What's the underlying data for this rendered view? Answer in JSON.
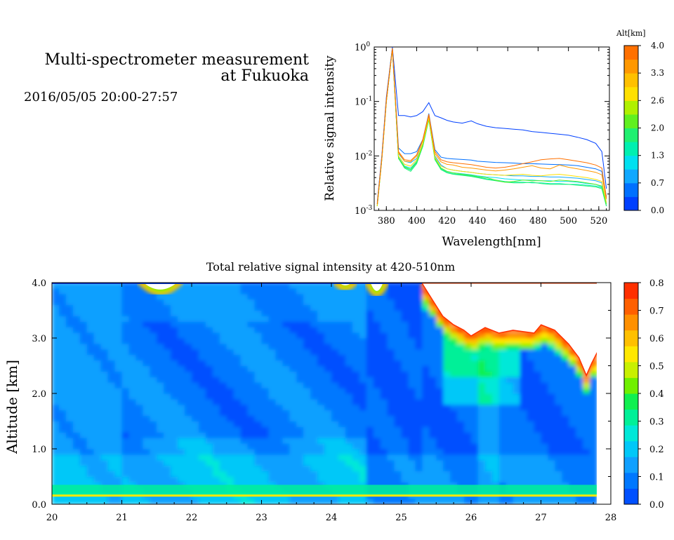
{
  "header": {
    "title_line1": "Multi-spectrometer measurement",
    "title_line2": "at Fukuoka",
    "timestamp": "2016/05/05 20:00-27:57"
  },
  "chart_data": [
    {
      "type": "line",
      "xlabel": "Wavelength[nm]",
      "ylabel": "Relative signal intensity",
      "xlim": [
        372,
        527
      ],
      "ylim": [
        0.001,
        1
      ],
      "yscale": "log",
      "x_ticks": [
        380,
        400,
        420,
        440,
        460,
        480,
        500,
        520
      ],
      "y_ticks": [
        "10^-3",
        "10^-2",
        "10^-1",
        "10^0"
      ],
      "colorbar": {
        "label": "Alt[km]",
        "ticks": [
          "0.0",
          "0.7",
          "1.3",
          "2.0",
          "2.6",
          "3.3",
          "4.0"
        ],
        "colors": [
          "#0040ff",
          "#0070ff",
          "#10a8ff",
          "#00e0f0",
          "#00f0b0",
          "#20f070",
          "#60f020",
          "#b0f000",
          "#ffe000",
          "#ffc000",
          "#ff9800",
          "#ff7000"
        ]
      },
      "x": [
        374,
        377,
        380,
        384,
        388,
        392,
        396,
        400,
        404,
        408,
        412,
        416,
        420,
        424,
        430,
        436,
        440,
        446,
        452,
        458,
        464,
        470,
        476,
        482,
        488,
        494,
        500,
        506,
        512,
        518,
        522,
        525
      ],
      "series": [
        {
          "color": "#0040ff",
          "values": [
            0.0014,
            0.01,
            0.12,
            1.0,
            0.055,
            0.055,
            0.052,
            0.055,
            0.065,
            0.095,
            0.055,
            0.05,
            0.045,
            0.042,
            0.04,
            0.044,
            0.039,
            0.035,
            0.033,
            0.032,
            0.031,
            0.03,
            0.028,
            0.027,
            0.026,
            0.025,
            0.024,
            0.022,
            0.02,
            0.017,
            0.012,
            0.0025
          ]
        },
        {
          "color": "#0070ff",
          "values": [
            0.0013,
            0.009,
            0.11,
            0.95,
            0.014,
            0.011,
            0.011,
            0.012,
            0.02,
            0.06,
            0.013,
            0.0095,
            0.009,
            0.0088,
            0.0086,
            0.0084,
            0.008,
            0.0078,
            0.0076,
            0.0075,
            0.0074,
            0.0072,
            0.0072,
            0.0071,
            0.007,
            0.0069,
            0.0068,
            0.0066,
            0.0062,
            0.0058,
            0.0052,
            0.0018
          ]
        },
        {
          "color": "#10a8ff",
          "values": [
            0.0013,
            0.009,
            0.1,
            0.93,
            0.011,
            0.008,
            0.0075,
            0.009,
            0.017,
            0.05,
            0.01,
            0.0068,
            0.0058,
            0.0055,
            0.0052,
            0.005,
            0.0048,
            0.0046,
            0.0045,
            0.0044,
            0.0043,
            0.0043,
            0.0042,
            0.0042,
            0.0041,
            0.0041,
            0.004,
            0.0039,
            0.0037,
            0.0035,
            0.0032,
            0.0014
          ]
        },
        {
          "color": "#00e0f0",
          "values": [
            0.0012,
            0.0085,
            0.1,
            0.92,
            0.0095,
            0.0065,
            0.006,
            0.008,
            0.016,
            0.048,
            0.009,
            0.006,
            0.0052,
            0.0049,
            0.0047,
            0.0045,
            0.0043,
            0.0041,
            0.004,
            0.0038,
            0.0037,
            0.0036,
            0.0036,
            0.0035,
            0.0035,
            0.0034,
            0.0034,
            0.0033,
            0.0031,
            0.003,
            0.0027,
            0.0013
          ]
        },
        {
          "color": "#00f0b0",
          "values": [
            0.0012,
            0.0085,
            0.1,
            0.92,
            0.009,
            0.0062,
            0.0055,
            0.0075,
            0.015,
            0.047,
            0.0088,
            0.0058,
            0.005,
            0.0047,
            0.0045,
            0.0043,
            0.0041,
            0.0038,
            0.0036,
            0.0034,
            0.0033,
            0.0033,
            0.0032,
            0.0032,
            0.0031,
            0.0031,
            0.003,
            0.003,
            0.0029,
            0.0028,
            0.0026,
            0.0012
          ]
        },
        {
          "color": "#20f070",
          "values": [
            0.0012,
            0.0085,
            0.1,
            0.92,
            0.009,
            0.006,
            0.0052,
            0.0072,
            0.015,
            0.046,
            0.0085,
            0.0056,
            0.0049,
            0.0046,
            0.0044,
            0.0042,
            0.004,
            0.0037,
            0.0035,
            0.0033,
            0.0032,
            0.0032,
            0.0033,
            0.0031,
            0.003,
            0.003,
            0.003,
            0.0029,
            0.0028,
            0.0027,
            0.0025,
            0.0012
          ]
        },
        {
          "color": "#60f020",
          "values": [
            0.0012,
            0.0085,
            0.1,
            0.92,
            0.0092,
            0.0063,
            0.0057,
            0.0078,
            0.016,
            0.048,
            0.009,
            0.006,
            0.0052,
            0.0049,
            0.0046,
            0.0044,
            0.0042,
            0.004,
            0.0036,
            0.0033,
            0.0034,
            0.0036,
            0.0035,
            0.0035,
            0.0034,
            0.0036,
            0.0035,
            0.0034,
            0.0032,
            0.003,
            0.0028,
            0.0013
          ]
        },
        {
          "color": "#ffe000",
          "values": [
            0.0012,
            0.0085,
            0.1,
            0.93,
            0.01,
            0.007,
            0.0065,
            0.0085,
            0.017,
            0.05,
            0.0095,
            0.0065,
            0.0058,
            0.0055,
            0.0052,
            0.005,
            0.0048,
            0.0046,
            0.0045,
            0.0044,
            0.0045,
            0.0046,
            0.0044,
            0.0043,
            0.0045,
            0.0046,
            0.0044,
            0.0042,
            0.004,
            0.0037,
            0.0034,
            0.0014
          ]
        },
        {
          "color": "#ff9800",
          "values": [
            0.0013,
            0.009,
            0.1,
            0.94,
            0.0115,
            0.008,
            0.0078,
            0.01,
            0.019,
            0.055,
            0.011,
            0.0078,
            0.007,
            0.0068,
            0.0062,
            0.006,
            0.0058,
            0.0055,
            0.0053,
            0.0055,
            0.0058,
            0.0062,
            0.0066,
            0.006,
            0.0058,
            0.0068,
            0.0062,
            0.0058,
            0.0054,
            0.005,
            0.0045,
            0.0016
          ]
        },
        {
          "color": "#ff7000",
          "values": [
            0.0013,
            0.009,
            0.11,
            0.95,
            0.012,
            0.0085,
            0.0082,
            0.0105,
            0.02,
            0.058,
            0.012,
            0.0085,
            0.0078,
            0.0075,
            0.0072,
            0.0069,
            0.0066,
            0.0062,
            0.006,
            0.0062,
            0.0066,
            0.0072,
            0.0078,
            0.0085,
            0.0088,
            0.009,
            0.0085,
            0.008,
            0.0075,
            0.0068,
            0.006,
            0.0017
          ]
        }
      ]
    },
    {
      "type": "heatmap",
      "title": "Total relative signal intensity at 420-510nm",
      "ylabel": "Altitude [km]",
      "xlim": [
        20,
        28
      ],
      "ylim": [
        0.0,
        4.0
      ],
      "x_ticks": [
        "20",
        "21",
        "22",
        "23",
        "24",
        "25",
        "26",
        "27",
        "28"
      ],
      "y_ticks": [
        "0.0",
        "1.0",
        "2.0",
        "3.0",
        "4.0"
      ],
      "colorbar": {
        "ticks": [
          "0.0",
          "0.1",
          "0.2",
          "0.3",
          "0.4",
          "0.5",
          "0.6",
          "0.7",
          "0.8"
        ],
        "range": [
          0.0,
          0.8
        ],
        "colors": [
          "#0050ff",
          "#0078ff",
          "#10a0ff",
          "#00c8f8",
          "#00e8d8",
          "#00f098",
          "#10f050",
          "#70f000",
          "#c8f000",
          "#ffe800",
          "#ffc000",
          "#ff9000",
          "#ff6000",
          "#ff3000"
        ]
      },
      "data_extent_x": [
        20,
        27.8
      ],
      "cloud_top_profile": {
        "x": [
          25.3,
          25.45,
          25.6,
          25.75,
          25.9,
          26.0,
          26.2,
          26.4,
          26.6,
          26.9,
          27.0,
          27.2,
          27.4,
          27.55,
          27.65,
          27.72,
          27.8
        ],
        "alt": [
          4.0,
          3.7,
          3.4,
          3.25,
          3.15,
          3.05,
          3.2,
          3.1,
          3.15,
          3.1,
          3.25,
          3.15,
          2.9,
          2.65,
          2.35,
          2.55,
          2.75
        ]
      },
      "thin_cloud_patches": [
        {
          "x0": 21.25,
          "x1": 21.85,
          "bottom": 3.7
        },
        {
          "x0": 24.05,
          "x1": 24.35,
          "bottom": 3.85
        },
        {
          "x0": 24.5,
          "x1": 24.8,
          "bottom": 3.65
        }
      ],
      "surface_layer": {
        "alt_min": 0.15,
        "alt_max": 0.35,
        "value": 0.3
      }
    }
  ]
}
